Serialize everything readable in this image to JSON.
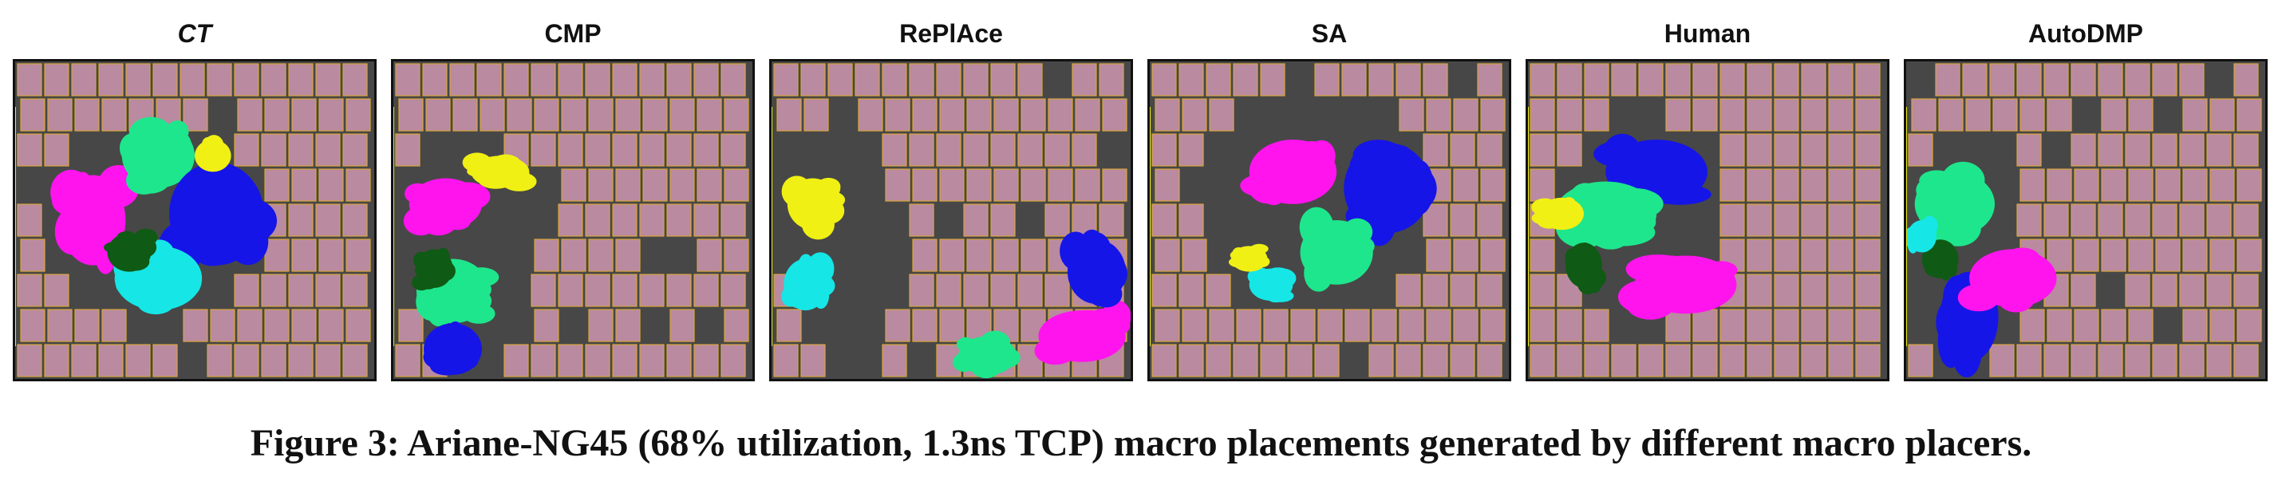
{
  "figure": {
    "caption": "Figure 3: Ariane-NG45 (68% utilization, 1.3ns TCP) macro placements generated by different macro placers.",
    "panels": [
      {
        "title": "CT",
        "italic": true
      },
      {
        "title": "CMP",
        "italic": false
      },
      {
        "title": "RePlAce",
        "italic": false
      },
      {
        "title": "SA",
        "italic": false
      },
      {
        "title": "Human",
        "italic": false
      },
      {
        "title": "AutoDMP",
        "italic": false
      }
    ],
    "colors": {
      "background": "#474747",
      "macro": "#b98aa0",
      "macro_stripe": "#d9a63b",
      "border": "#111111",
      "cluster_magenta": "#ff14ee",
      "cluster_green": "#1ee68c",
      "cluster_blue": "#1515e8",
      "cluster_cyan": "#16e6e6",
      "cluster_darkgreen": "#0f5a14",
      "cluster_yellow": "#f0f014",
      "cluster_red": "#e01818"
    }
  }
}
